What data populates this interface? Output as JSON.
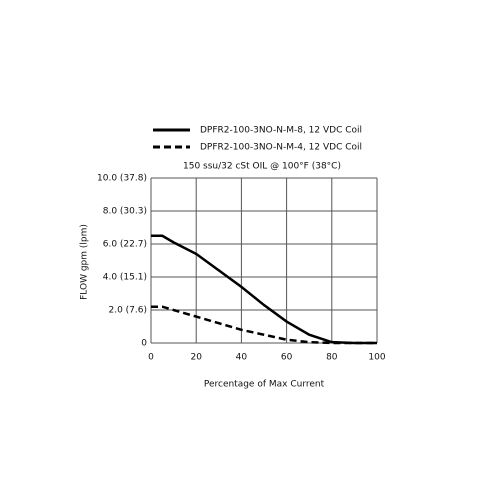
{
  "chart_data": {
    "type": "line",
    "subtitle": "150 ssu/32 cSt OIL @ 100°F (38°C)",
    "x_label": "Percentage of Max Current",
    "y_label": "FLOW gpm (lpm)",
    "x": [
      0,
      5,
      10,
      20,
      30,
      40,
      50,
      60,
      70,
      80,
      90,
      100
    ],
    "series": [
      {
        "name": "DPFR2-100-3NO-N-M-8, 12 VDC Coil",
        "color": "#000000",
        "line_style": "solid",
        "values": [
          6.5,
          6.5,
          6.1,
          5.4,
          4.4,
          3.4,
          2.3,
          1.3,
          0.5,
          0.05,
          0,
          0
        ]
      },
      {
        "name": "DPFR2-100-3NO-N-M-4, 12 VDC Coil",
        "color": "#000000",
        "line_style": "dashed",
        "values": [
          2.2,
          2.2,
          2.0,
          1.6,
          1.2,
          0.8,
          0.5,
          0.2,
          0.05,
          0,
          0,
          0
        ]
      }
    ],
    "xlim": [
      0,
      100
    ],
    "xticks": [
      0,
      20,
      40,
      60,
      80,
      100
    ],
    "ylim": [
      0,
      10
    ],
    "yticks": [
      {
        "value": 0,
        "label": "0"
      },
      {
        "value": 2,
        "label": "2.0 (7.6)"
      },
      {
        "value": 4,
        "label": "4.0 (15.1)"
      },
      {
        "value": 6,
        "label": "6.0 (22.7)"
      },
      {
        "value": 8,
        "label": "8.0 (30.3)"
      },
      {
        "value": 10,
        "label": "10.0 (37.8)"
      }
    ],
    "grid": true
  }
}
